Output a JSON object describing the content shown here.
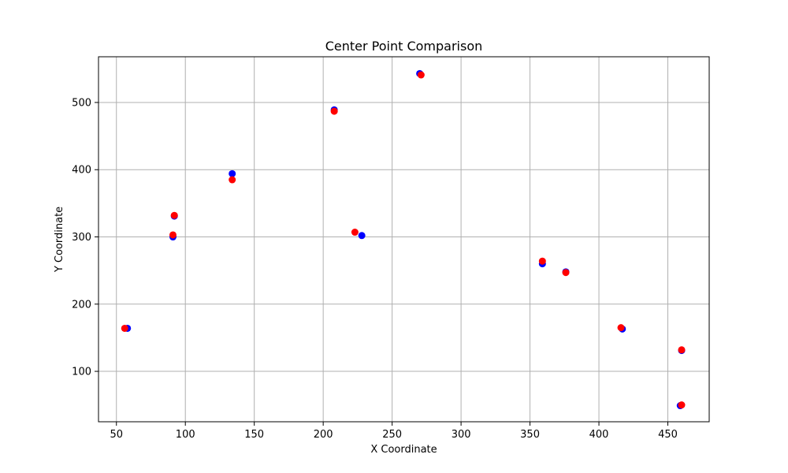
{
  "chart_data": {
    "type": "scatter",
    "title": "Center Point Comparison",
    "xlabel": "X Coordinate",
    "ylabel": "Y Coordinate",
    "xlim": [
      37,
      480
    ],
    "ylim": [
      25,
      568
    ],
    "xticks": [
      50,
      100,
      150,
      200,
      250,
      300,
      350,
      400,
      450
    ],
    "yticks": [
      100,
      200,
      300,
      400,
      500
    ],
    "grid": true,
    "series": [
      {
        "color": "#0000ff",
        "points": [
          [
            58,
            164
          ],
          [
            91,
            300
          ],
          [
            92,
            331
          ],
          [
            134,
            394
          ],
          [
            208,
            489
          ],
          [
            228,
            302
          ],
          [
            270,
            543
          ],
          [
            359,
            260
          ],
          [
            376,
            248
          ],
          [
            417,
            163
          ],
          [
            459,
            49
          ],
          [
            460,
            131
          ]
        ]
      },
      {
        "color": "#ff0000",
        "points": [
          [
            56,
            164
          ],
          [
            91,
            303
          ],
          [
            92,
            332
          ],
          [
            134,
            385
          ],
          [
            208,
            487
          ],
          [
            223,
            307
          ],
          [
            271,
            541
          ],
          [
            359,
            264
          ],
          [
            376,
            247
          ],
          [
            416,
            165
          ],
          [
            460,
            50
          ],
          [
            460,
            132
          ]
        ]
      }
    ]
  }
}
